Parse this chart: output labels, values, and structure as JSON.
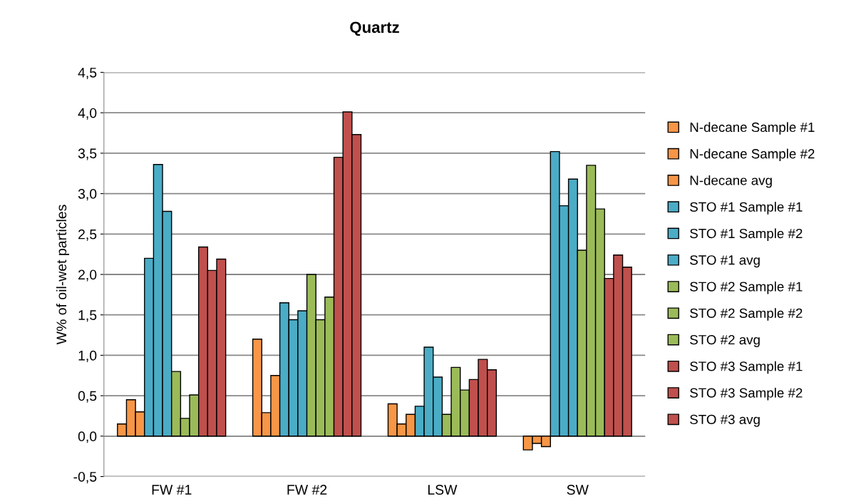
{
  "chart_data": {
    "type": "bar",
    "title": "Quartz",
    "ylabel": "W% of oil-wet particles",
    "categories": [
      "FW #1",
      "FW #2",
      "LSW",
      "SW"
    ],
    "series": [
      {
        "name": "N-decane Sample #1",
        "color": "#f79646",
        "values": [
          0.15,
          1.2,
          0.4,
          -0.17
        ]
      },
      {
        "name": "N-decane Sample #2",
        "color": "#f79646",
        "values": [
          0.45,
          0.29,
          0.15,
          -0.09
        ]
      },
      {
        "name": "N-decane avg",
        "color": "#f79646",
        "values": [
          0.3,
          0.75,
          0.27,
          -0.13
        ]
      },
      {
        "name": "STO #1 Sample #1",
        "color": "#4bacc6",
        "values": [
          2.2,
          1.65,
          0.37,
          3.52
        ]
      },
      {
        "name": "STO #1 Sample #2",
        "color": "#4bacc6",
        "values": [
          3.36,
          1.44,
          1.1,
          2.85
        ]
      },
      {
        "name": "STO #1 avg",
        "color": "#4bacc6",
        "values": [
          2.78,
          1.55,
          0.73,
          3.18
        ]
      },
      {
        "name": "STO #2 Sample #1",
        "color": "#9bbb59",
        "values": [
          0.8,
          2.0,
          0.27,
          2.3
        ]
      },
      {
        "name": "STO #2 Sample #2",
        "color": "#9bbb59",
        "values": [
          0.22,
          1.44,
          0.85,
          3.35
        ]
      },
      {
        "name": "STO #2 avg",
        "color": "#9bbb59",
        "values": [
          0.51,
          1.72,
          0.57,
          2.81
        ]
      },
      {
        "name": "STO #3 Sample #1",
        "color": "#c0504d",
        "values": [
          2.34,
          3.45,
          0.7,
          1.95
        ]
      },
      {
        "name": "STO #3 Sample #2",
        "color": "#c0504d",
        "values": [
          2.05,
          4.01,
          0.95,
          2.24
        ]
      },
      {
        "name": "STO #3 avg",
        "color": "#c0504d",
        "values": [
          2.19,
          3.73,
          0.82,
          2.09
        ]
      }
    ],
    "ylim": [
      -0.5,
      4.5
    ],
    "yticks": [
      {
        "value": -0.5,
        "label": "-0,5"
      },
      {
        "value": 0,
        "label": "0,0"
      },
      {
        "value": 0.5,
        "label": "0,5"
      },
      {
        "value": 1,
        "label": "1,0"
      },
      {
        "value": 1.5,
        "label": "1,5"
      },
      {
        "value": 2,
        "label": "2,0"
      },
      {
        "value": 2.5,
        "label": "2,5"
      },
      {
        "value": 3,
        "label": "3,0"
      },
      {
        "value": 3.5,
        "label": "3,5"
      },
      {
        "value": 4,
        "label": "4,0"
      },
      {
        "value": 4.5,
        "label": "4,5"
      }
    ],
    "grid": "y",
    "legend": "right"
  }
}
